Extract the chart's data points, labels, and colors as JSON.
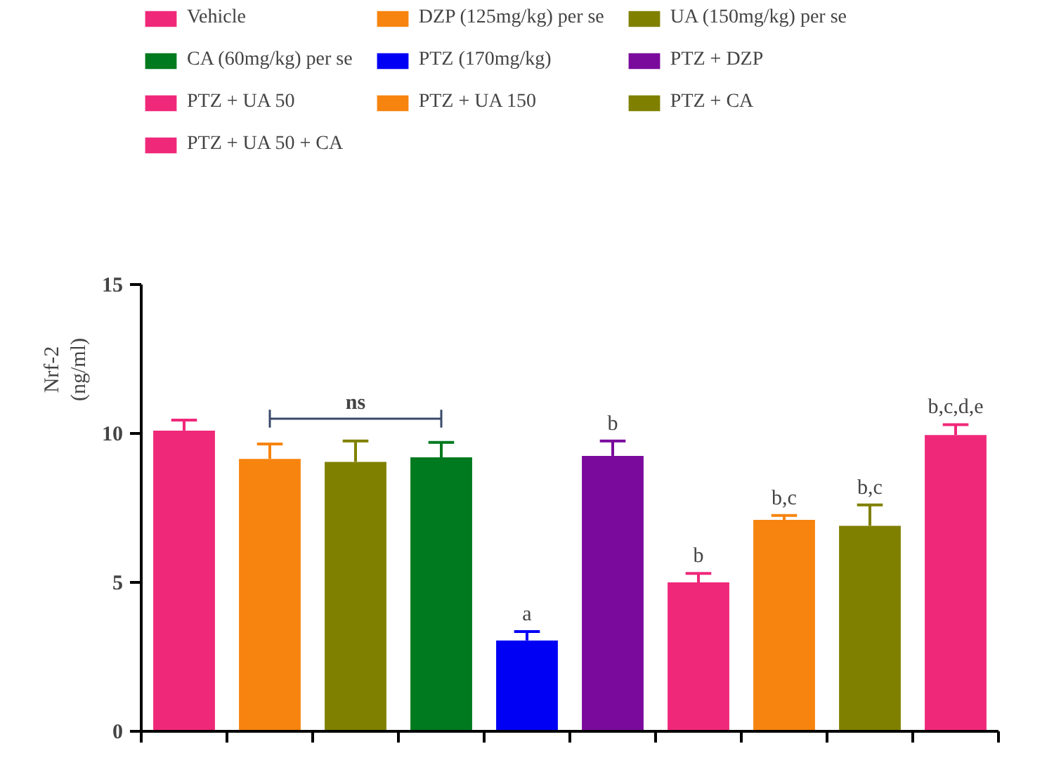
{
  "chart_data": {
    "type": "bar",
    "categories": [
      null,
      null,
      null,
      null,
      null,
      null,
      null,
      null,
      null,
      null
    ],
    "series": [
      {
        "name": "Vehicle",
        "color": "#f0287a",
        "values": [
          10.1,
          null,
          null,
          null,
          null,
          null,
          null,
          null,
          null,
          null
        ],
        "errors": [
          [
            10.1,
            10.45
          ],
          null,
          null,
          null,
          null,
          null,
          null,
          null,
          null,
          null
        ]
      },
      {
        "name": "DZP (125mg/kg) per se",
        "color": "#f7840f",
        "values": [
          null,
          9.15,
          null,
          null,
          null,
          null,
          null,
          null,
          null,
          null
        ],
        "errors": [
          null,
          [
            9.15,
            9.65
          ],
          null,
          null,
          null,
          null,
          null,
          null,
          null,
          null
        ]
      },
      {
        "name": "UA (150mg/kg) per se",
        "color": "#808000",
        "values": [
          null,
          null,
          9.05,
          null,
          null,
          null,
          null,
          null,
          null,
          null
        ],
        "errors": [
          null,
          null,
          [
            9.05,
            9.75
          ],
          null,
          null,
          null,
          null,
          null,
          null,
          null
        ]
      },
      {
        "name": "CA (60mg/kg) per se",
        "color": "#007a1e",
        "values": [
          null,
          null,
          null,
          9.2,
          null,
          null,
          null,
          null,
          null,
          null
        ],
        "errors": [
          null,
          null,
          null,
          [
            9.2,
            9.7
          ],
          null,
          null,
          null,
          null,
          null,
          null
        ]
      },
      {
        "name": "PTZ (170mg/kg)",
        "color": "#0000f5",
        "values": [
          null,
          null,
          null,
          null,
          3.05,
          null,
          null,
          null,
          null,
          null
        ],
        "errors": [
          null,
          null,
          null,
          null,
          [
            3.05,
            3.35
          ],
          null,
          null,
          null,
          null,
          null
        ],
        "value_labels": [
          null,
          null,
          null,
          null,
          "a",
          null,
          null,
          null,
          null,
          null
        ]
      },
      {
        "name": "PTZ + DZP",
        "color": "#7a0a9c",
        "values": [
          null,
          null,
          null,
          null,
          null,
          9.25,
          null,
          null,
          null,
          null
        ],
        "errors": [
          null,
          null,
          null,
          null,
          null,
          [
            9.25,
            9.75
          ],
          null,
          null,
          null,
          null
        ],
        "value_labels": [
          null,
          null,
          null,
          null,
          null,
          "b",
          null,
          null,
          null,
          null
        ]
      },
      {
        "name": "PTZ + UA 50",
        "color": "#f0287a",
        "values": [
          null,
          null,
          null,
          null,
          null,
          null,
          5.0,
          null,
          null,
          null
        ],
        "errors": [
          null,
          null,
          null,
          null,
          null,
          null,
          [
            5.0,
            5.3
          ],
          null,
          null,
          null
        ],
        "value_labels": [
          null,
          null,
          null,
          null,
          null,
          null,
          "b",
          null,
          null,
          null
        ]
      },
      {
        "name": "PTZ + UA 150",
        "color": "#f7840f",
        "values": [
          null,
          null,
          null,
          null,
          null,
          null,
          null,
          7.1,
          null,
          null
        ],
        "errors": [
          null,
          null,
          null,
          null,
          null,
          null,
          null,
          [
            7.1,
            7.25
          ],
          null,
          null
        ],
        "value_labels": [
          null,
          null,
          null,
          null,
          null,
          null,
          null,
          "b,c",
          null,
          null
        ]
      },
      {
        "name": "PTZ + CA",
        "color": "#808000",
        "values": [
          null,
          null,
          null,
          null,
          null,
          null,
          null,
          null,
          6.9,
          null
        ],
        "errors": [
          null,
          null,
          null,
          null,
          null,
          null,
          null,
          null,
          [
            6.9,
            7.6
          ],
          null
        ],
        "value_labels": [
          null,
          null,
          null,
          null,
          null,
          null,
          null,
          null,
          "b,c",
          null
        ]
      },
      {
        "name": "PTZ + UA 50 + CA",
        "color": "#f0287a",
        "values": [
          null,
          null,
          null,
          null,
          null,
          null,
          null,
          null,
          null,
          9.95
        ],
        "errors": [
          null,
          null,
          null,
          null,
          null,
          null,
          null,
          null,
          null,
          [
            9.95,
            10.3
          ]
        ],
        "value_labels": [
          null,
          null,
          null,
          null,
          null,
          null,
          null,
          null,
          null,
          "b,c,d,e"
        ]
      }
    ],
    "ylabel": "Nrf-2\n(ng/ml)",
    "ylim": [
      0,
      15
    ],
    "yticks": [
      0,
      5,
      10,
      15
    ],
    "annotations": [
      "ns"
    ],
    "tick_labels": "y",
    "grid": false,
    "legend": "top"
  }
}
